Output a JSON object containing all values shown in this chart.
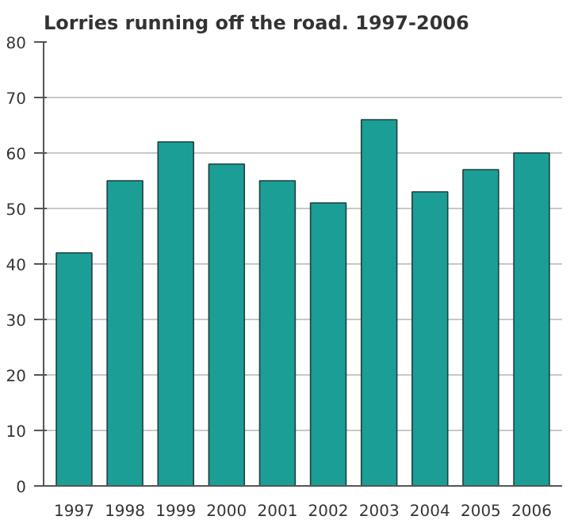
{
  "chart_data": {
    "type": "bar",
    "title": "Lorries running off the road. 1997-2006",
    "categories": [
      "1997",
      "1998",
      "1999",
      "2000",
      "2001",
      "2002",
      "2003",
      "2004",
      "2005",
      "2006"
    ],
    "values": [
      42,
      55,
      62,
      58,
      55,
      51,
      66,
      53,
      57,
      60
    ],
    "color": "#1a9e96",
    "ylim": [
      0,
      80
    ],
    "yticks": [
      0,
      10,
      20,
      30,
      40,
      50,
      60,
      70,
      80
    ],
    "grid": "y"
  }
}
